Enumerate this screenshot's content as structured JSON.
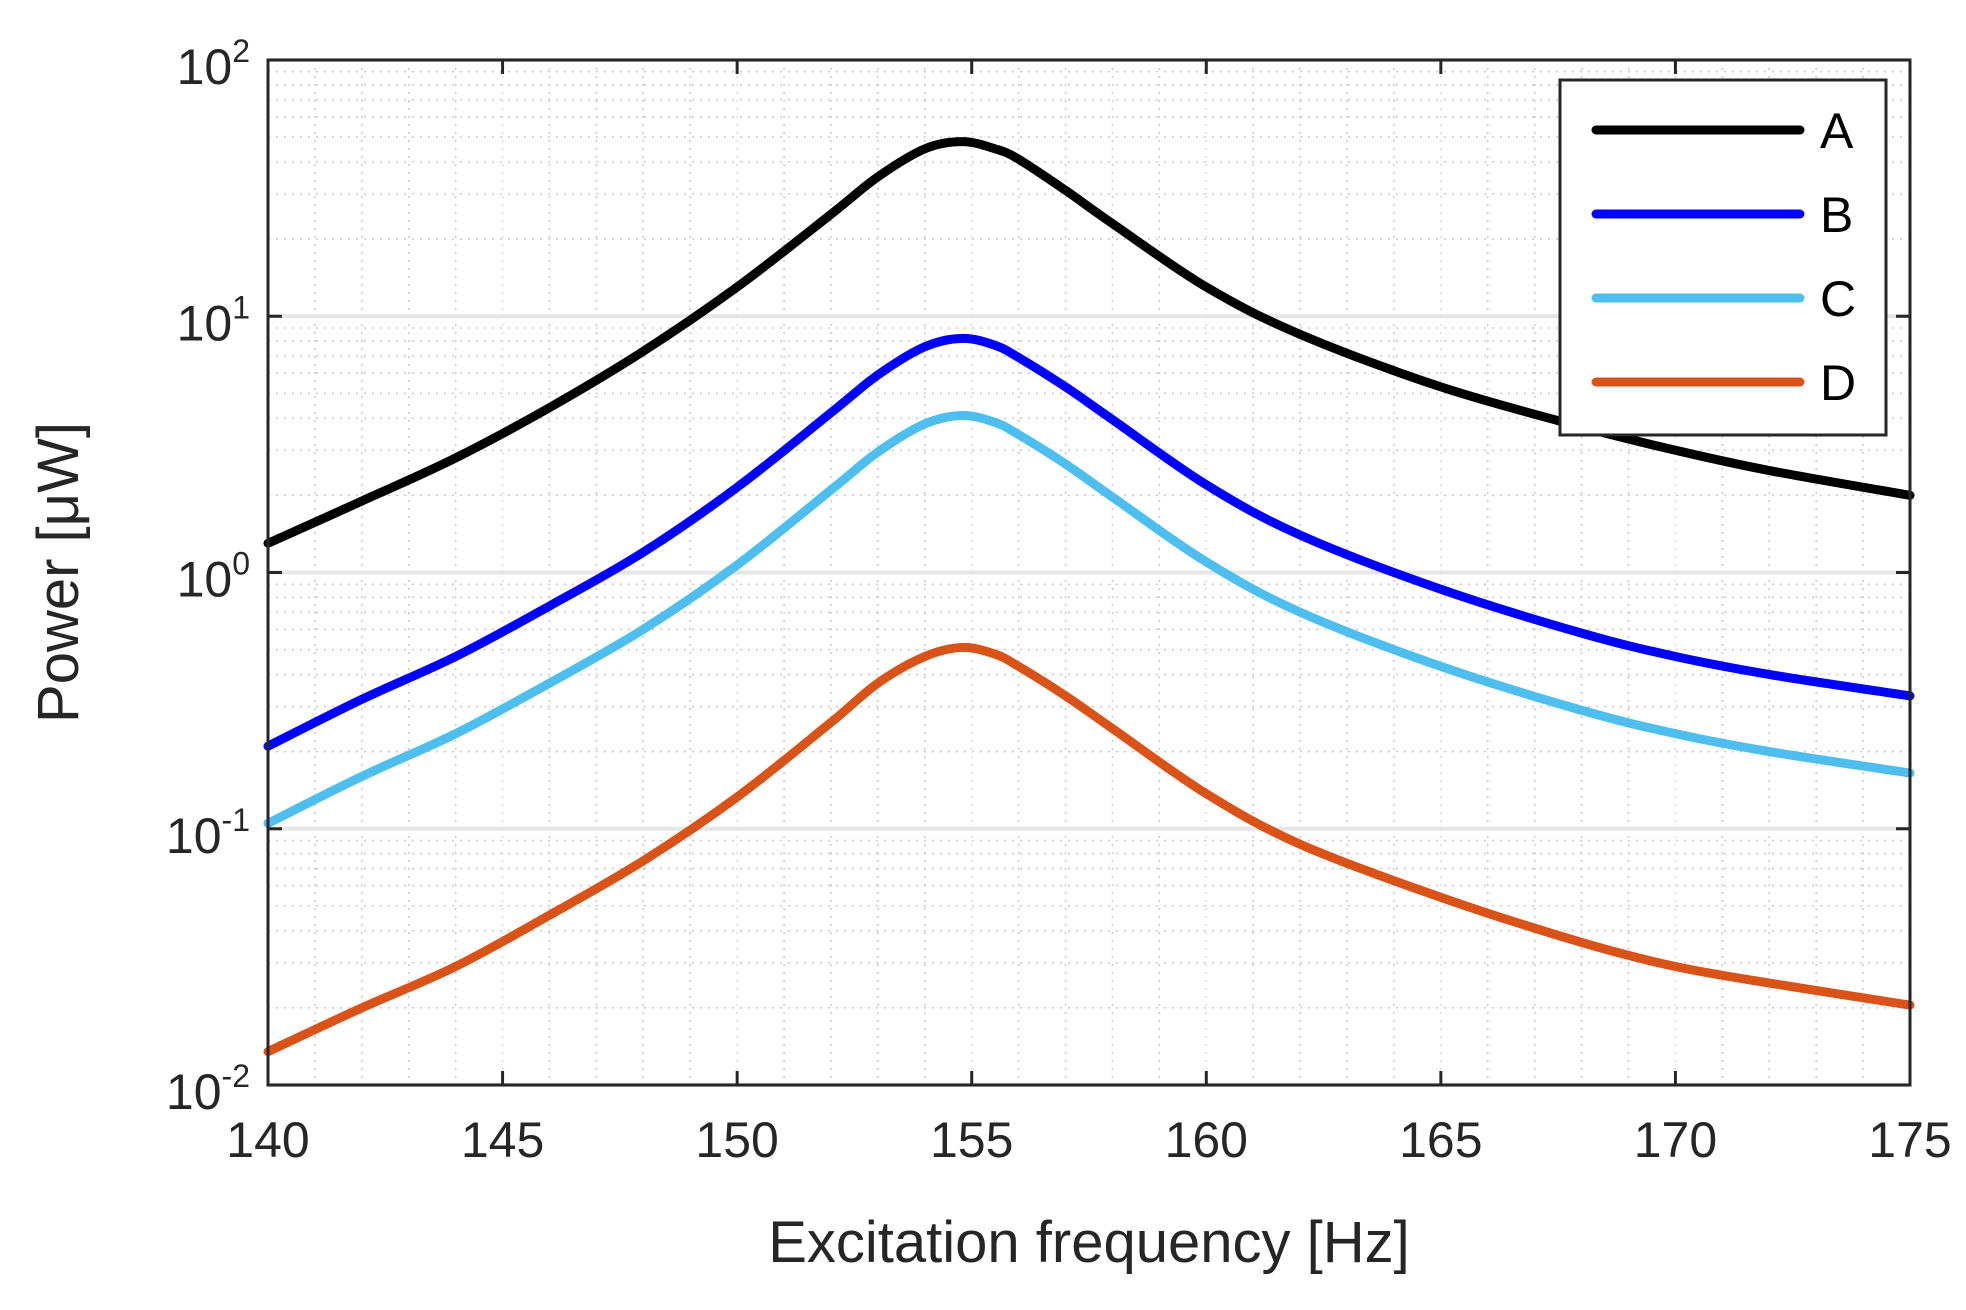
{
  "chart_data": {
    "type": "line",
    "title": "",
    "xlabel": "Excitation frequency [Hz]",
    "ylabel": "Power [μW]",
    "xlim": [
      140,
      175
    ],
    "ylim": [
      0.01,
      100
    ],
    "yscale": "log",
    "grid": true,
    "legend_position": "top-right",
    "x_ticks": [
      {
        "value": 140,
        "label": "140"
      },
      {
        "value": 145,
        "label": "145"
      },
      {
        "value": 150,
        "label": "150"
      },
      {
        "value": 155,
        "label": "155"
      },
      {
        "value": 160,
        "label": "160"
      },
      {
        "value": 165,
        "label": "165"
      },
      {
        "value": 170,
        "label": "170"
      },
      {
        "value": 175,
        "label": "175"
      }
    ],
    "y_ticks": [
      {
        "value": 0.01,
        "base": "10",
        "exp": "-2"
      },
      {
        "value": 0.1,
        "base": "10",
        "exp": "-1"
      },
      {
        "value": 1,
        "base": "10",
        "exp": "0"
      },
      {
        "value": 10,
        "base": "10",
        "exp": "1"
      },
      {
        "value": 100,
        "base": "10",
        "exp": "2"
      }
    ],
    "x": [
      140,
      142,
      144,
      146,
      148,
      150,
      152,
      153,
      154,
      154.8,
      155.5,
      156,
      157,
      158,
      160,
      162,
      165,
      168,
      170,
      172,
      175
    ],
    "series": [
      {
        "name": "A",
        "color": "#000000",
        "values": [
          1.3,
          1.9,
          2.8,
          4.4,
          7.3,
          13.0,
          25.0,
          35.0,
          45.0,
          48.0,
          45.0,
          41.0,
          31.0,
          23.0,
          13.0,
          8.5,
          5.3,
          3.7,
          3.0,
          2.5,
          2.0
        ]
      },
      {
        "name": "B",
        "color": "#0000ff",
        "values": [
          0.21,
          0.32,
          0.47,
          0.74,
          1.2,
          2.15,
          4.2,
          5.9,
          7.6,
          8.2,
          7.7,
          6.9,
          5.3,
          3.95,
          2.2,
          1.4,
          0.86,
          0.58,
          0.47,
          0.4,
          0.33
        ]
      },
      {
        "name": "C",
        "color": "#4dbeee",
        "values": [
          0.105,
          0.16,
          0.235,
          0.37,
          0.6,
          1.07,
          2.1,
          2.95,
          3.8,
          4.1,
          3.85,
          3.45,
          2.65,
          1.97,
          1.1,
          0.7,
          0.43,
          0.29,
          0.235,
          0.2,
          0.165
        ]
      },
      {
        "name": "D",
        "color": "#d95319",
        "values": [
          0.0135,
          0.02,
          0.029,
          0.046,
          0.075,
          0.133,
          0.26,
          0.37,
          0.47,
          0.51,
          0.48,
          0.43,
          0.33,
          0.246,
          0.137,
          0.087,
          0.054,
          0.036,
          0.029,
          0.025,
          0.0205
        ]
      }
    ]
  }
}
